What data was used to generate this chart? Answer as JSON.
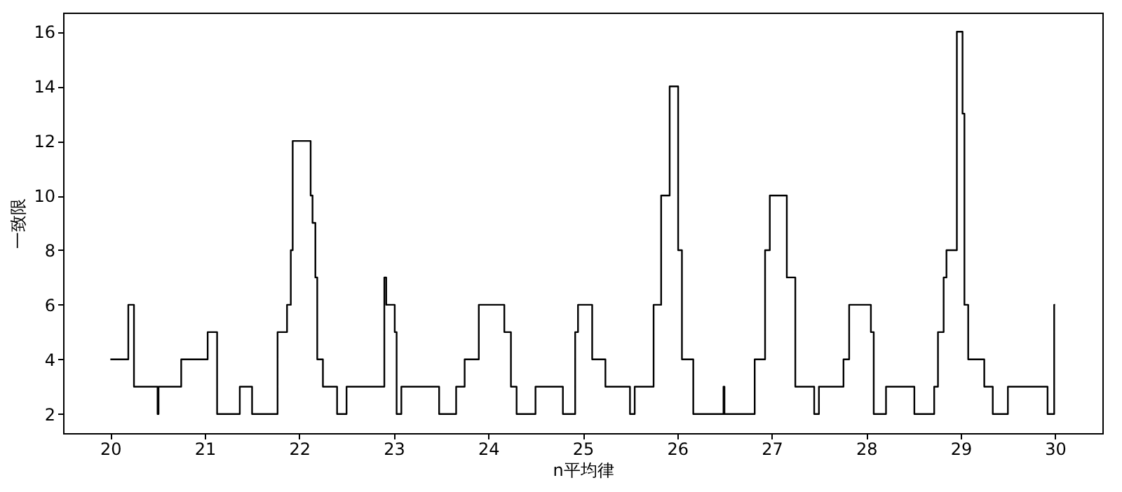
{
  "chart_data": {
    "type": "step",
    "xlabel": "n平均律",
    "ylabel": "一致限",
    "x": [
      20.0,
      20.19,
      20.25,
      20.5,
      20.51,
      20.75,
      21.03,
      21.13,
      21.37,
      21.5,
      21.77,
      21.87,
      21.91,
      21.93,
      22.12,
      22.14,
      22.17,
      22.19,
      22.25,
      22.4,
      22.5,
      22.9,
      22.92,
      23.01,
      23.03,
      23.08,
      23.48,
      23.66,
      23.75,
      23.9,
      24.17,
      24.24,
      24.3,
      24.5,
      24.79,
      24.92,
      24.95,
      25.1,
      25.24,
      25.5,
      25.55,
      25.75,
      25.83,
      25.92,
      26.01,
      26.05,
      26.17,
      26.49,
      26.5,
      26.82,
      26.93,
      26.98,
      27.16,
      27.25,
      27.45,
      27.5,
      27.76,
      27.82,
      28.05,
      28.08,
      28.21,
      28.51,
      28.72,
      28.76,
      28.82,
      28.85,
      28.96,
      29.02,
      29.04,
      29.08,
      29.25,
      29.34,
      29.5,
      29.92,
      29.99,
      30.0
    ],
    "series": [
      {
        "color": "#000000",
        "values": [
          4,
          6,
          3,
          2,
          3,
          4,
          5,
          2,
          3,
          2,
          5,
          6,
          8,
          12,
          10,
          9,
          7,
          4,
          3,
          2,
          3,
          7,
          6,
          5,
          2,
          3,
          2,
          3,
          4,
          6,
          5,
          3,
          2,
          3,
          2,
          5,
          6,
          4,
          3,
          2,
          3,
          6,
          10,
          14,
          8,
          4,
          2,
          3,
          2,
          4,
          8,
          10,
          7,
          3,
          2,
          3,
          4,
          6,
          5,
          2,
          3,
          2,
          3,
          5,
          7,
          8,
          16,
          13,
          6,
          4,
          3,
          2,
          3,
          2,
          6,
          6
        ]
      }
    ],
    "xlim": [
      19.5,
      30.5
    ],
    "ylim": [
      1.3,
      16.7
    ],
    "xticks": [
      20,
      21,
      22,
      23,
      24,
      25,
      26,
      27,
      28,
      29,
      30
    ],
    "yticks": [
      2,
      4,
      6,
      8,
      10,
      12,
      14,
      16
    ],
    "grid": false
  }
}
